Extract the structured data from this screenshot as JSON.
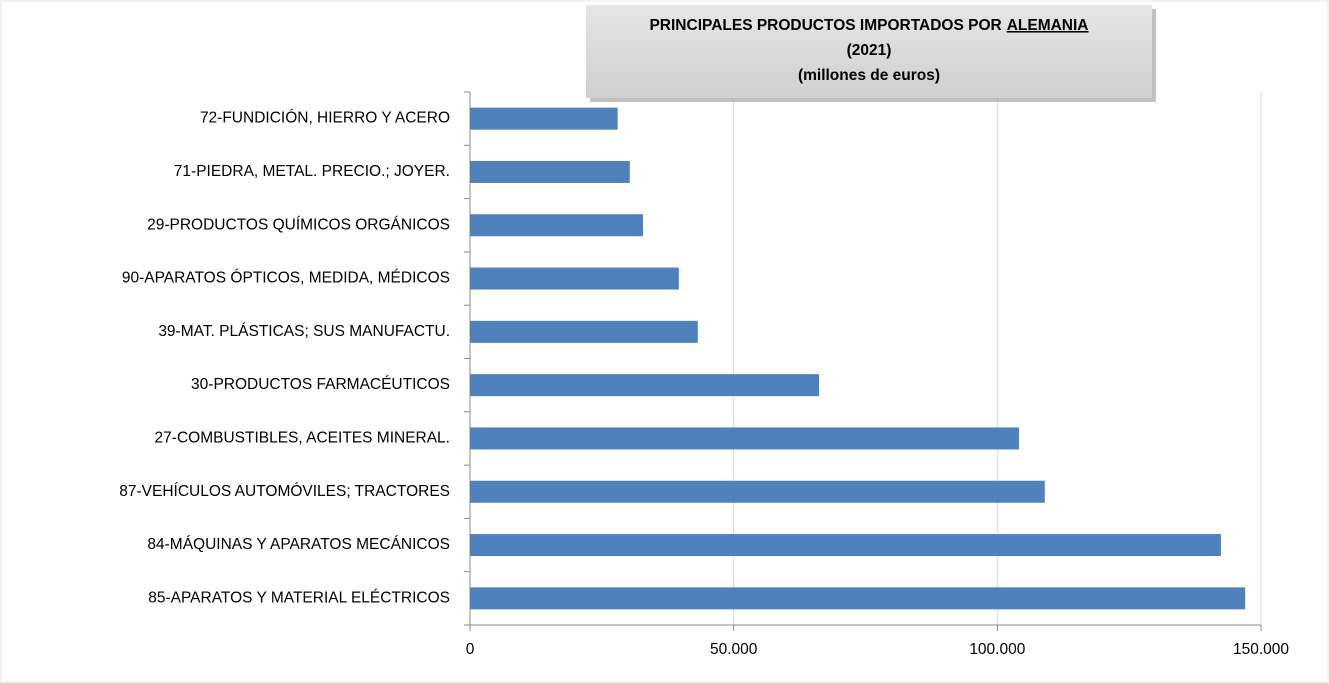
{
  "chart_data": {
    "type": "barh",
    "title": "PRINCIPALES PRODUCTOS IMPORTADOS POR",
    "title_country": "ALEMANIA",
    "subtitle": [
      "(2021)",
      "(millones de euros)"
    ],
    "categories": [
      "72-FUNDICIÓN, HIERRO Y ACERO",
      "71-PIEDRA, METAL. PRECIO.; JOYER.",
      "29-PRODUCTOS QUÍMICOS ORGÁNICOS",
      "90-APARATOS ÓPTICOS, MEDIDA, MÉDICOS",
      "39-MAT. PLÁSTICAS; SUS MANUFACTU.",
      "30-PRODUCTOS FARMACÉUTICOS",
      "27-COMBUSTIBLES, ACEITES MINERAL.",
      "87-VEHÍCULOS AUTOMÓVILES; TRACTORES",
      "84-MÁQUINAS Y APARATOS MECÁNICOS",
      "85-APARATOS Y MATERIAL ELÉCTRICOS"
    ],
    "values": [
      28000,
      30300,
      32800,
      39600,
      43200,
      66200,
      104100,
      109000,
      142400,
      147000
    ],
    "color": "#4f81bd",
    "xlim": [
      0,
      150000
    ],
    "xticks": [
      0,
      {
        "value": 50000,
        "label": "50.000"
      },
      {
        "value": 100000,
        "label": "100.000"
      },
      {
        "value": 150000,
        "label": "150.000"
      }
    ],
    "grid": true
  }
}
